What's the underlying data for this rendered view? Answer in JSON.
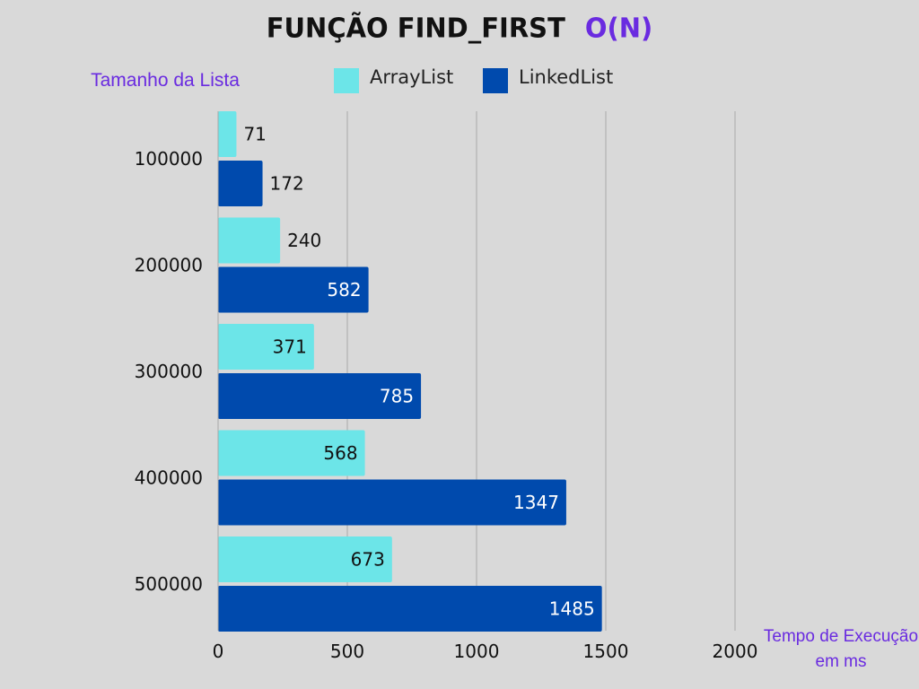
{
  "title": {
    "main": "FUNÇÃO FIND_FIRST",
    "complexity": "O(N)"
  },
  "colors": {
    "background": "#d9d9d9",
    "accent_text": "#6a2be0"
  },
  "legend": [
    {
      "name": "ArrayList",
      "color": "#6ce5e8"
    },
    {
      "name": "LinkedList",
      "color": "#004aad"
    }
  ],
  "chart_data": {
    "type": "bar",
    "orientation": "horizontal",
    "title": "FUNÇÃO FIND_FIRST O(N)",
    "ylabel": "Tamanho da Lista",
    "xlabel": "Tempo de Execução em ms",
    "categories": [
      "100000",
      "200000",
      "300000",
      "400000",
      "500000"
    ],
    "series": [
      {
        "name": "ArrayList",
        "color": "#6ce5e8",
        "label_color": "#111111",
        "values": [
          71,
          240,
          371,
          568,
          673
        ]
      },
      {
        "name": "LinkedList",
        "color": "#004aad",
        "label_color": "#ffffff",
        "values": [
          172,
          582,
          785,
          1347,
          1485
        ]
      }
    ],
    "xlim": [
      0,
      2000
    ],
    "xticks": [
      0,
      500,
      1000,
      1500,
      2000
    ],
    "grid": true,
    "legend_position": "top"
  }
}
